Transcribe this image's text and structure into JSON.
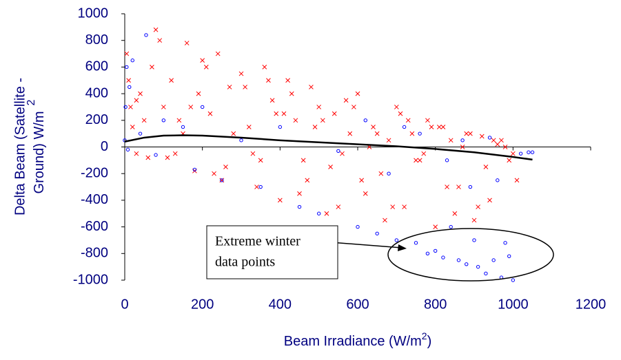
{
  "chart_data": {
    "type": "scatter",
    "x_label": {
      "text": "Beam Irradiance (W/m",
      "sup": "2",
      "end": ")"
    },
    "y_label": {
      "line1": "Delta Beam  (Satellite -",
      "line2": "Ground) W/m",
      "sup": "2"
    },
    "xlim": [
      0,
      1200
    ],
    "xticks": [
      0,
      200,
      400,
      600,
      800,
      1000,
      1200
    ],
    "ylim": [
      -1000,
      1000
    ],
    "yticks": [
      -1000,
      -800,
      -600,
      -400,
      -200,
      0,
      200,
      400,
      600,
      800,
      1000
    ],
    "grid": false,
    "series": [
      {
        "marker": "x",
        "color": "#ff0000",
        "x": [
          5,
          10,
          15,
          20,
          30,
          40,
          50,
          60,
          80,
          100,
          120,
          150,
          160,
          180,
          200,
          220,
          240,
          250,
          270,
          300,
          320,
          340,
          360,
          380,
          400,
          420,
          440,
          460,
          480,
          500,
          520,
          540,
          560,
          580,
          600,
          620,
          640,
          660,
          680,
          700,
          720,
          740,
          760,
          780,
          800,
          820,
          840,
          860,
          880,
          900,
          920,
          940,
          960,
          980,
          1000,
          30,
          70,
          110,
          140,
          190,
          230,
          280,
          330,
          370,
          410,
          450,
          490,
          530,
          570,
          610,
          650,
          690,
          730,
          770,
          810,
          850,
          890,
          930,
          970,
          1010,
          90,
          130,
          170,
          210,
          260,
          310,
          350,
          390,
          430,
          470,
          510,
          550,
          590,
          630,
          670,
          710,
          750,
          790,
          830,
          870,
          910,
          950,
          990
        ],
        "values": [
          700,
          500,
          300,
          150,
          -50,
          400,
          200,
          -80,
          880,
          300,
          500,
          100,
          780,
          -180,
          650,
          250,
          700,
          -250,
          450,
          550,
          150,
          -300,
          600,
          350,
          -400,
          500,
          200,
          -100,
          450,
          300,
          -500,
          250,
          -50,
          100,
          400,
          -350,
          150,
          -200,
          50,
          300,
          -450,
          100,
          -100,
          200,
          -600,
          150,
          50,
          -300,
          100,
          -550,
          80,
          -400,
          20,
          0,
          -50,
          350,
          600,
          -80,
          200,
          400,
          -200,
          100,
          -50,
          500,
          250,
          -350,
          150,
          -150,
          350,
          -250,
          100,
          -450,
          200,
          -50,
          150,
          -500,
          100,
          -150,
          50,
          -250,
          800,
          -50,
          300,
          600,
          -150,
          450,
          -100,
          250,
          400,
          -250,
          200,
          -450,
          300,
          0,
          -550,
          250,
          -100,
          150,
          -300,
          0,
          -450,
          50,
          -100
        ]
      },
      {
        "marker": "o",
        "color": "#0000ff",
        "x": [
          0,
          2,
          5,
          8,
          12,
          20,
          40,
          55,
          80,
          100,
          150,
          180,
          200,
          250,
          300,
          350,
          400,
          450,
          500,
          550,
          600,
          650,
          700,
          720,
          750,
          780,
          800,
          820,
          840,
          860,
          880,
          900,
          910,
          930,
          950,
          970,
          990,
          1000,
          1020,
          1040,
          1050,
          620,
          680,
          760,
          830,
          870,
          890,
          940,
          960,
          980
        ],
        "values": [
          50,
          300,
          600,
          -20,
          450,
          650,
          100,
          840,
          -60,
          200,
          150,
          -170,
          300,
          -250,
          50,
          -300,
          150,
          -450,
          -500,
          -30,
          -600,
          -650,
          -700,
          150,
          -720,
          -800,
          -780,
          -830,
          -600,
          -850,
          -880,
          -700,
          -900,
          -950,
          -850,
          -980,
          -820,
          -1000,
          -50,
          -40,
          -40,
          200,
          -200,
          100,
          -100,
          50,
          -300,
          70,
          -250,
          -720
        ]
      },
      {
        "marker": "line",
        "color": "#000000",
        "x": [
          0,
          50,
          100,
          150,
          200,
          300,
          400,
          500,
          600,
          700,
          800,
          900,
          1000,
          1050
        ],
        "values": [
          40,
          70,
          85,
          88,
          85,
          70,
          50,
          35,
          20,
          5,
          -15,
          -40,
          -75,
          -95
        ]
      }
    ],
    "annotation": {
      "line1": "Extreme winter",
      "line2": "data points"
    }
  }
}
